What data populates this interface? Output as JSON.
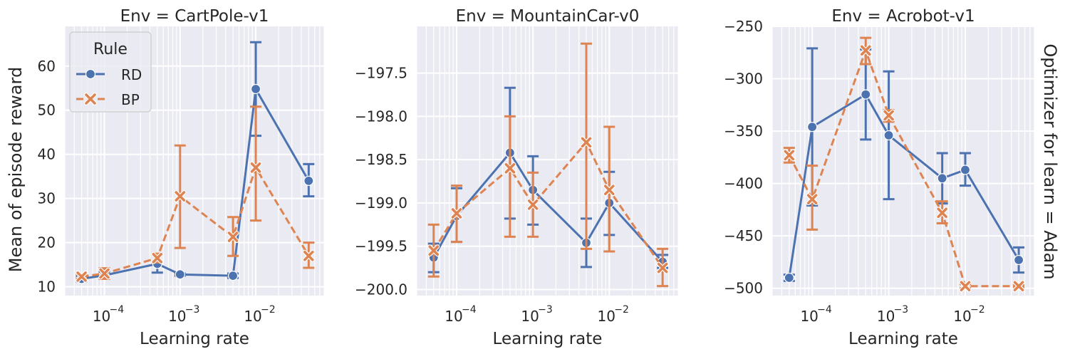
{
  "figure": {
    "row_label": "Optimizer for learn = Adam",
    "ylabel": "Mean of episode reward",
    "legend": {
      "title": "Rule",
      "entries": [
        {
          "label": "RD",
          "color": "#4c72b0",
          "marker": "circle",
          "dash": "solid"
        },
        {
          "label": "BP",
          "color": "#dd8452",
          "marker": "x",
          "dash": "dashed"
        }
      ]
    }
  },
  "chart_data": [
    {
      "type": "line",
      "title": "Env = CartPole-v1",
      "xlabel": "Learning rate",
      "ylabel": "Mean of episode reward",
      "xscale": "log",
      "xlim": [
        3e-05,
        0.08
      ],
      "ylim": [
        8,
        69
      ],
      "yticks": [
        10,
        20,
        30,
        40,
        50,
        60
      ],
      "ytick_labels": [
        "10",
        "20",
        "30",
        "40",
        "50",
        "60"
      ],
      "xticks": [
        0.0001,
        0.001,
        0.01
      ],
      "xtick_labels": [
        "10",
        "10",
        "10"
      ],
      "xtick_exponents": [
        "−4",
        "−3",
        "−2"
      ],
      "grid": true,
      "legend_position": "top-left",
      "x": [
        5e-05,
        0.0001,
        0.0005,
        0.001,
        0.005,
        0.01,
        0.05
      ],
      "series": [
        {
          "name": "RD",
          "values": [
            11.8,
            12.6,
            15.2,
            12.8,
            12.5,
            54.8,
            34.0
          ],
          "err_low": [
            11.2,
            11.8,
            13.2,
            12.5,
            12.0,
            44.2,
            30.5
          ],
          "err_high": [
            12.4,
            13.4,
            17.3,
            13.0,
            13.0,
            65.4,
            37.8
          ]
        },
        {
          "name": "BP",
          "values": [
            12.3,
            13.0,
            16.5,
            30.5,
            21.3,
            37.0,
            17.0
          ],
          "err_low": [
            11.8,
            11.8,
            15.5,
            18.8,
            17.0,
            25.0,
            14.3
          ],
          "err_high": [
            12.8,
            14.2,
            17.5,
            42.0,
            25.8,
            50.8,
            20.0
          ]
        }
      ]
    },
    {
      "type": "line",
      "title": "Env = MountainCar-v0",
      "xlabel": "Learning rate",
      "xscale": "log",
      "xlim": [
        3e-05,
        0.08
      ],
      "ylim": [
        -200.07,
        -196.96
      ],
      "yticks": [
        -197.5,
        -198.0,
        -198.5,
        -199.0,
        -199.5,
        -200.0
      ],
      "ytick_labels": [
        "−197.5",
        "−198.0",
        "−198.5",
        "−199.0",
        "−199.5",
        "−200.0"
      ],
      "xticks": [
        0.0001,
        0.001,
        0.01
      ],
      "xtick_labels": [
        "10",
        "10",
        "10"
      ],
      "xtick_exponents": [
        "−4",
        "−3",
        "−2"
      ],
      "grid": true,
      "x": [
        5e-05,
        0.0001,
        0.0005,
        0.001,
        0.005,
        0.01,
        0.05
      ],
      "series": [
        {
          "name": "RD",
          "values": [
            -199.63,
            -199.15,
            -198.42,
            -198.85,
            -199.46,
            -199.0,
            -199.68
          ],
          "err_low": [
            -199.8,
            -199.45,
            -199.18,
            -199.25,
            -199.74,
            -199.37,
            -199.75
          ],
          "err_high": [
            -199.47,
            -198.83,
            -197.67,
            -198.46,
            -199.18,
            -198.64,
            -199.6
          ]
        },
        {
          "name": "BP",
          "values": [
            -199.55,
            -199.12,
            -198.6,
            -199.02,
            -198.3,
            -198.85,
            -199.75
          ],
          "err_low": [
            -199.85,
            -199.45,
            -199.39,
            -199.39,
            -199.53,
            -199.56,
            -199.96
          ],
          "err_high": [
            -199.25,
            -198.8,
            -198.0,
            -198.65,
            -197.16,
            -198.12,
            -199.53
          ]
        }
      ]
    },
    {
      "type": "line",
      "title": "Env = Acrobot-v1",
      "xlabel": "Learning rate",
      "xscale": "log",
      "xlim": [
        3e-05,
        0.08
      ],
      "ylim": [
        -507,
        -250
      ],
      "yticks": [
        -250,
        -300,
        -350,
        -400,
        -450,
        -500
      ],
      "ytick_labels": [
        "−250",
        "−300",
        "−350",
        "−400",
        "−450",
        "−500"
      ],
      "xticks": [
        0.0001,
        0.001,
        0.01
      ],
      "xtick_labels": [
        "10",
        "10",
        "10"
      ],
      "xtick_exponents": [
        "−4",
        "−3",
        "−2"
      ],
      "grid": true,
      "x": [
        5e-05,
        0.0001,
        0.0005,
        0.001,
        0.005,
        0.01,
        0.05
      ],
      "series": [
        {
          "name": "RD",
          "values": [
            -490,
            -346,
            -315,
            -354,
            -395,
            -387,
            -473
          ],
          "err_low": [
            -493,
            -421,
            -358,
            -415,
            -419,
            -402,
            -485
          ],
          "err_high": [
            -487,
            -271,
            -272,
            -293,
            -371,
            -371,
            -461
          ]
        },
        {
          "name": "BP",
          "values": [
            -373,
            -415,
            -273,
            -335,
            -428,
            -498,
            -498
          ],
          "err_low": [
            -380,
            -444,
            -286,
            -341,
            -438,
            -500,
            -499
          ],
          "err_high": [
            -366,
            -383,
            -261,
            -330,
            -417,
            -496,
            -497
          ]
        }
      ]
    }
  ]
}
